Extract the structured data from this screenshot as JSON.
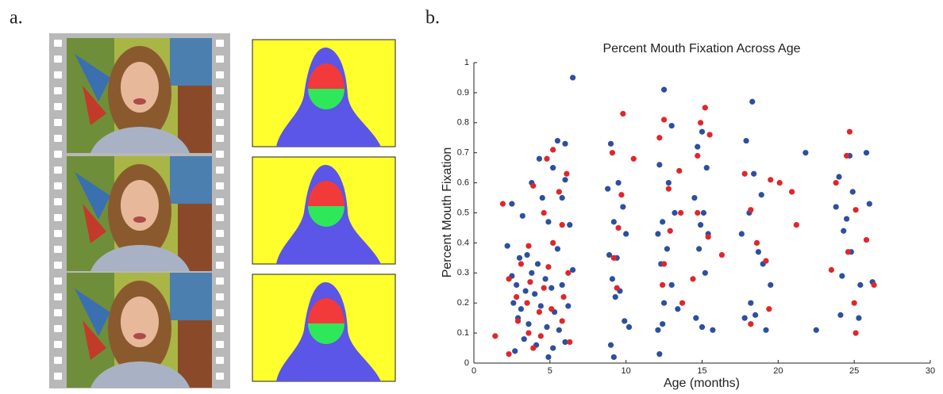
{
  "panel_labels": [
    "a.",
    "b."
  ],
  "chart_data": {
    "type": "scatter",
    "title": "Percent Mouth Fixation Across Age",
    "x_label": "Age (months)",
    "y_label": "Percent Mouth Fixation",
    "xlim": [
      0,
      30
    ],
    "xticks": [
      0,
      5,
      10,
      15,
      20,
      25,
      30
    ],
    "ylim": [
      0,
      1
    ],
    "yticks": [
      0,
      0.1,
      0.2,
      0.3,
      0.4,
      0.5,
      0.6,
      0.7,
      0.8,
      0.9,
      1
    ],
    "series": [
      {
        "color": "#2d4fa0",
        "x": [
          6.5,
          5.5,
          6,
          4.3,
          5.2,
          3.8,
          6,
          4.5,
          5.8,
          2.5,
          3.2,
          4.9,
          6.3,
          2.2,
          3.5,
          4.2,
          5.5,
          3,
          2.5,
          3.8,
          4.7,
          6.5,
          2.8,
          3.4,
          4,
          5.1,
          5.8,
          2.6,
          3.1,
          4.4,
          5.3,
          6.2,
          2.9,
          3.6,
          4.8,
          5.6,
          3.3,
          4.1,
          5.2,
          6,
          2.7,
          4.9,
          9,
          8.8,
          9.5,
          9.8,
          9.2,
          10,
          8.9,
          9.4,
          9.1,
          9.6,
          9.3,
          9.9,
          10.2,
          9,
          9.2,
          12.5,
          13,
          12.2,
          12.8,
          13.2,
          12.4,
          12.1,
          12.7,
          12.3,
          13,
          12.5,
          13.4,
          12.4,
          12.1,
          12.2,
          15,
          14.7,
          15.3,
          14.5,
          15.1,
          14.9,
          15.4,
          14.8,
          15.2,
          14.6,
          15,
          15.7,
          18.3,
          17.9,
          18.4,
          18.9,
          18.1,
          17.6,
          18.7,
          19,
          19.5,
          18.2,
          18.5,
          17.8,
          19.2,
          21.8,
          25.8,
          24.7,
          24,
          24.9,
          23.8,
          24.5,
          26,
          24.3,
          24.8,
          24.2,
          25.4,
          26.2,
          24.1,
          22.5,
          25.3
        ],
        "values": [
          0.95,
          0.74,
          0.73,
          0.68,
          0.65,
          0.6,
          0.61,
          0.55,
          0.55,
          0.53,
          0.49,
          0.47,
          0.46,
          0.39,
          0.36,
          0.33,
          0.38,
          0.35,
          0.29,
          0.3,
          0.28,
          0.31,
          0.26,
          0.24,
          0.23,
          0.25,
          0.26,
          0.2,
          0.18,
          0.19,
          0.17,
          0.19,
          0.15,
          0.13,
          0.12,
          0.11,
          0.08,
          0.06,
          0.05,
          0.07,
          0.04,
          0.02,
          0.73,
          0.58,
          0.6,
          0.52,
          0.47,
          0.43,
          0.36,
          0.35,
          0.28,
          0.24,
          0.22,
          0.14,
          0.12,
          0.06,
          0.02,
          0.91,
          0.79,
          0.66,
          0.6,
          0.5,
          0.47,
          0.43,
          0.38,
          0.33,
          0.26,
          0.2,
          0.18,
          0.13,
          0.11,
          0.03,
          0.77,
          0.72,
          0.65,
          0.55,
          0.5,
          0.46,
          0.43,
          0.38,
          0.3,
          0.15,
          0.12,
          0.11,
          0.87,
          0.74,
          0.63,
          0.56,
          0.5,
          0.43,
          0.37,
          0.33,
          0.26,
          0.2,
          0.16,
          0.15,
          0.11,
          0.7,
          0.7,
          0.69,
          0.62,
          0.57,
          0.52,
          0.48,
          0.53,
          0.44,
          0.37,
          0.29,
          0.26,
          0.27,
          0.16,
          0.11,
          0.15
        ]
      },
      {
        "color": "#e0262b",
        "x": [
          9.8,
          15.2,
          12.5,
          14.9,
          24.7,
          15.5,
          12.2,
          5.2,
          4.8,
          9.1,
          10.5,
          14.7,
          24.5,
          13.5,
          17.8,
          19.5,
          6.1,
          3.9,
          20.1,
          20.9,
          23.8,
          12.8,
          5.6,
          9.7,
          1.9,
          4.6,
          13.6,
          14.7,
          18.2,
          25.1,
          5.8,
          9.5,
          21.2,
          12.9,
          15.4,
          18.6,
          3.6,
          5.2,
          16.3,
          24.6,
          9.2,
          12.5,
          25.8,
          19.2,
          3.1,
          4.9,
          6.2,
          2.3,
          14.4,
          23.5,
          26.3,
          3.7,
          4.6,
          5.9,
          12.4,
          9.4,
          2.8,
          3.5,
          13.7,
          19.4,
          4.3,
          5.1,
          25,
          2.9,
          5.8,
          18.2,
          3.6,
          4.4,
          25.1,
          1.4,
          6.3,
          2.3,
          3.9
        ],
        "values": [
          0.83,
          0.85,
          0.81,
          0.8,
          0.77,
          0.76,
          0.75,
          0.71,
          0.68,
          0.7,
          0.68,
          0.69,
          0.69,
          0.64,
          0.63,
          0.61,
          0.63,
          0.59,
          0.6,
          0.57,
          0.6,
          0.58,
          0.57,
          0.56,
          0.53,
          0.5,
          0.5,
          0.5,
          0.51,
          0.51,
          0.46,
          0.45,
          0.46,
          0.44,
          0.42,
          0.4,
          0.39,
          0.4,
          0.36,
          0.37,
          0.35,
          0.33,
          0.41,
          0.34,
          0.33,
          0.32,
          0.3,
          0.28,
          0.28,
          0.31,
          0.26,
          0.27,
          0.25,
          0.22,
          0.26,
          0.25,
          0.22,
          0.2,
          0.2,
          0.18,
          0.17,
          0.18,
          0.2,
          0.14,
          0.14,
          0.13,
          0.1,
          0.09,
          0.1,
          0.09,
          0.07,
          0.03,
          0.05
        ]
      }
    ]
  }
}
